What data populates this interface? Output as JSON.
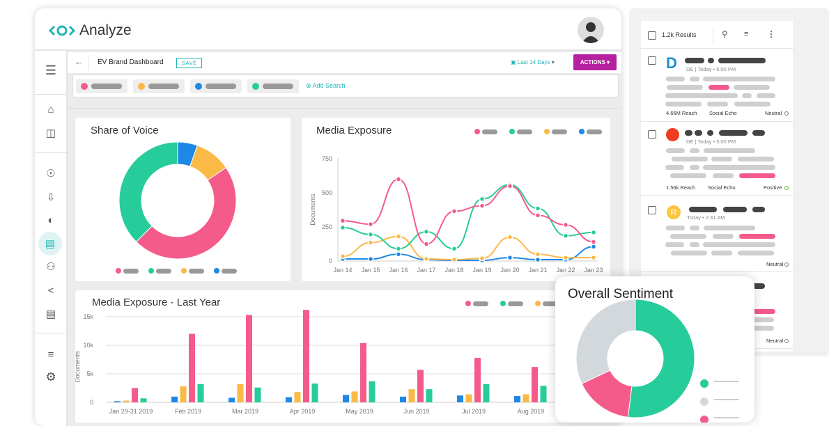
{
  "app": {
    "name": "Analyze"
  },
  "toolbar": {
    "back_icon": "arrow-left-icon",
    "dashboard_title": "EV Brand Dashboard",
    "save_label": "SAVE",
    "date_range": "Last 14 Days",
    "actions_label": "ACTIONS"
  },
  "search": {
    "add_label": "Add Search",
    "chips": [
      {
        "color": "#f45b8a"
      },
      {
        "color": "#fbb945"
      },
      {
        "color": "#1e88e5"
      },
      {
        "color": "#27cc9b"
      }
    ]
  },
  "colors": {
    "pink": "#f45b8a",
    "green": "#27cc9b",
    "yellow": "#fbb945",
    "blue": "#1e88e5",
    "accent": "#1fb5b5",
    "actions": "#b5219f"
  },
  "sidebar": {
    "items": [
      "menu-icon",
      "home-icon",
      "dashboard-icon",
      "compass-icon",
      "inbox-download-icon",
      "gauge-icon",
      "bar-chart-icon",
      "users-icon",
      "share-icon",
      "report-icon",
      "sliders-icon",
      "gear-icon"
    ],
    "active": "bar-chart-icon"
  },
  "share_of_voice": {
    "title": "Share of Voice"
  },
  "media_exposure": {
    "title": "Media Exposure"
  },
  "media_last_year": {
    "title": "Media Exposure - Last Year"
  },
  "sentiment": {
    "title": "Overall Sentiment"
  },
  "results": {
    "count_label": "1.2k Results",
    "items": [
      {
        "meta": "DE | Today • 5:00 PM",
        "reach": "4.66M Reach",
        "source": "Social Echo",
        "sentiment": "Neutral",
        "avatar_letter": "D"
      },
      {
        "meta": "DE | Today • 5:00 PM",
        "reach": "1.56k Reach",
        "source": "Social Echo",
        "sentiment": "Positive",
        "avatar_letter": ""
      },
      {
        "meta": "Today • 2:31 AM",
        "reach": "",
        "source": "",
        "sentiment": "Neutral",
        "avatar_letter": "R"
      },
      {
        "meta": "",
        "reach": "",
        "source": "",
        "sentiment": "Neutral",
        "avatar_letter": ""
      }
    ]
  },
  "chart_data": [
    {
      "type": "pie",
      "title": "Share of Voice",
      "donut": true,
      "series": [
        {
          "color": "#1e88e5",
          "value": 5.5
        },
        {
          "color": "#fbb945",
          "value": 10
        },
        {
          "color": "#f45b8a",
          "value": 47
        },
        {
          "color": "#27cc9b",
          "value": 37.5
        }
      ]
    },
    {
      "type": "line",
      "title": "Media Exposure",
      "ylabel": "Documents",
      "ylim": [
        0,
        750
      ],
      "yticks": [
        "0",
        "250",
        "500",
        "750"
      ],
      "categories": [
        "Jan 14",
        "Jan 15",
        "Jan 16",
        "Jan 17",
        "Jan 18",
        "Jan 19",
        "Jan 20",
        "Jan 21",
        "Jan 22",
        "Jan 23"
      ],
      "series": [
        {
          "color": "#f45b8a",
          "values": [
            295,
            270,
            600,
            125,
            365,
            405,
            550,
            335,
            265,
            140
          ]
        },
        {
          "color": "#27cc9b",
          "values": [
            245,
            195,
            90,
            215,
            90,
            455,
            560,
            385,
            185,
            210
          ]
        },
        {
          "color": "#fbb945",
          "values": [
            35,
            135,
            180,
            15,
            10,
            20,
            175,
            50,
            25,
            25
          ]
        },
        {
          "color": "#1e88e5",
          "values": [
            15,
            15,
            50,
            10,
            5,
            5,
            25,
            10,
            10,
            105
          ]
        }
      ]
    },
    {
      "type": "bar",
      "title": "Media Exposure - Last Year",
      "ylabel": "Documents",
      "ylim": [
        0,
        15000
      ],
      "yticks": [
        "0",
        "5k",
        "10k",
        "15k"
      ],
      "categories": [
        "Jan 29-31 2019",
        "Feb 2019",
        "Mar 2019",
        "Apr 2019",
        "May 2019",
        "Jun 2019",
        "Jul 2019",
        "Aug 2019"
      ],
      "series": [
        {
          "color": "#1e88e5",
          "values": [
            200,
            1000,
            800,
            900,
            1300,
            1000,
            1200,
            1100
          ]
        },
        {
          "color": "#fbb945",
          "values": [
            300,
            2800,
            3200,
            1800,
            1900,
            2300,
            1400,
            1400
          ]
        },
        {
          "color": "#f45b8a",
          "values": [
            2500,
            12000,
            15300,
            16200,
            10400,
            5700,
            7800,
            6200
          ]
        },
        {
          "color": "#27cc9b",
          "values": [
            700,
            3200,
            2600,
            3300,
            3700,
            2300,
            3200,
            2900
          ]
        }
      ]
    },
    {
      "type": "pie",
      "title": "Overall Sentiment",
      "donut": true,
      "series": [
        {
          "color": "#27cc9b",
          "value": 52
        },
        {
          "color": "#f45b8a",
          "value": 16
        },
        {
          "color": "#d3d8dc",
          "value": 32
        }
      ]
    }
  ]
}
